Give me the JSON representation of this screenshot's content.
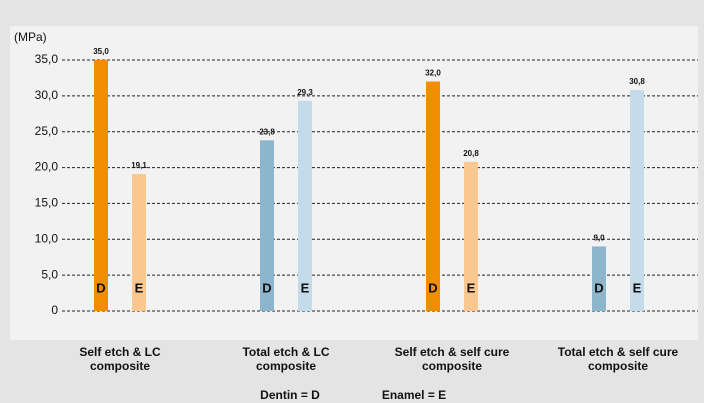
{
  "chart_data": {
    "type": "bar",
    "y_label": "(MPa)",
    "categories": [
      [
        "Self etch & LC",
        "composite"
      ],
      [
        "Total etch & LC",
        "composite"
      ],
      [
        "Self etch & self cure",
        "composite"
      ],
      [
        "Total etch & self cure",
        "composite"
      ]
    ],
    "series": [
      {
        "name": "D",
        "colors": [
          "#f28c00",
          "#8db5cb",
          "#f28c00",
          "#8db5cb"
        ],
        "values": [
          35,
          23.8,
          32,
          9
        ],
        "value_labels": [
          "35,0",
          "23,8",
          "32,0",
          "9,0"
        ]
      },
      {
        "name": "E",
        "colors": [
          "#f8c890",
          "#c4dbe9",
          "#f8c890",
          "#c4dbe9"
        ],
        "values": [
          19.1,
          29.3,
          20.8,
          30.8
        ],
        "value_labels": [
          "19,1",
          "29,3",
          "20,8",
          "30,8"
        ]
      }
    ],
    "legend": [
      "Dentin = D",
      "Enamel = E"
    ],
    "ylim": [
      0,
      35
    ],
    "yticks": [
      0,
      {
        "value": 5,
        "label": "5,0"
      },
      {
        "value": 10,
        "label": "10,0"
      },
      {
        "value": 15,
        "label": "15,0"
      },
      {
        "value": 20,
        "label": "20,0"
      },
      {
        "value": 25,
        "label": "25,0"
      },
      {
        "value": 30,
        "label": "30,0"
      },
      {
        "value": 35,
        "label": "35,0"
      }
    ],
    "grid": true
  }
}
